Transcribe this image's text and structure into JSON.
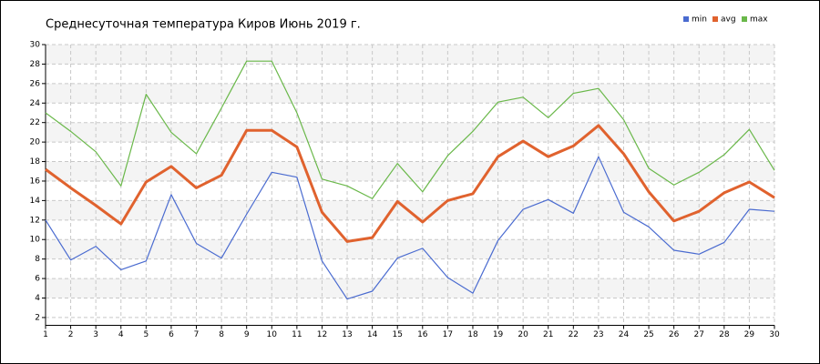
{
  "chart_data": {
    "type": "line",
    "title": "Среднесуточная температура Киров  Июнь 2019 г.",
    "x": [
      1,
      2,
      3,
      4,
      5,
      6,
      7,
      8,
      9,
      10,
      11,
      12,
      13,
      14,
      15,
      16,
      17,
      18,
      19,
      20,
      21,
      22,
      23,
      24,
      25,
      26,
      27,
      28,
      29,
      30
    ],
    "xlim": [
      1,
      30
    ],
    "xticks": [
      1,
      2,
      3,
      4,
      5,
      6,
      7,
      8,
      9,
      10,
      11,
      12,
      13,
      14,
      15,
      16,
      17,
      18,
      19,
      20,
      21,
      22,
      23,
      24,
      25,
      26,
      27,
      28,
      29,
      30
    ],
    "ylim": [
      1.2,
      30
    ],
    "yticks": [
      2,
      4,
      6,
      8,
      10,
      12,
      14,
      16,
      18,
      20,
      22,
      24,
      26,
      28,
      30
    ],
    "grid": true,
    "legend": "upper right",
    "series": [
      {
        "name": "min",
        "color": "#4a6bd0",
        "values": [
          12,
          7.9,
          9.3,
          6.9,
          7.8,
          14.6,
          9.6,
          8.1,
          12.6,
          16.9,
          16.4,
          7.8,
          3.9,
          4.7,
          8.1,
          9.1,
          6.1,
          4.5,
          9.9,
          13.1,
          14.1,
          12.7,
          18.5,
          12.8,
          11.3,
          8.9,
          8.5,
          9.7,
          13.1,
          12.9
        ]
      },
      {
        "name": "avg",
        "color": "#e0622e",
        "values": [
          17.2,
          15.3,
          13.5,
          11.6,
          15.9,
          17.5,
          15.3,
          16.6,
          21.2,
          21.2,
          19.5,
          12.8,
          9.8,
          10.2,
          13.9,
          11.8,
          14.0,
          14.7,
          18.5,
          20.1,
          18.5,
          19.6,
          21.7,
          18.8,
          14.9,
          11.9,
          12.9,
          14.8,
          15.9,
          14.3
        ]
      },
      {
        "name": "max",
        "color": "#6ab84a",
        "values": [
          23,
          21.1,
          19,
          15.5,
          24.9,
          21,
          18.8,
          23.5,
          28.3,
          28.3,
          23,
          16.2,
          15.5,
          14.2,
          17.8,
          14.9,
          18.6,
          21.1,
          24.1,
          24.6,
          22.5,
          25,
          25.5,
          22.3,
          17.3,
          15.6,
          16.9,
          18.7,
          21.3,
          17.1
        ]
      }
    ]
  }
}
